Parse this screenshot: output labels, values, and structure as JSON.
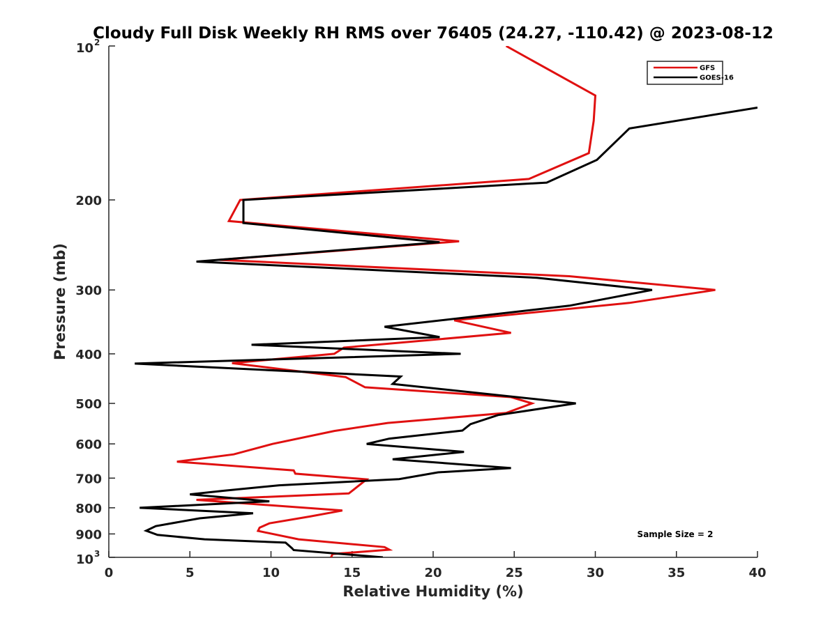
{
  "chart_data": {
    "type": "line",
    "title": "Cloudy Full Disk Weekly RH RMS over 76405 (24.27, -110.42) @ 2023-08-12",
    "xlabel": "Relative Humidity (%)",
    "ylabel": "Pressure (mb)",
    "xlim": [
      0,
      40
    ],
    "ylim": [
      100,
      1000
    ],
    "yscale": "log",
    "y_reversed": true,
    "x_ticks": [
      0,
      5,
      10,
      15,
      20,
      25,
      30,
      35,
      40
    ],
    "y_ticks": [
      {
        "value": 100,
        "base": "10",
        "exp": "2"
      },
      {
        "value": 200,
        "label": "200"
      },
      {
        "value": 300,
        "label": "300"
      },
      {
        "value": 400,
        "label": "400"
      },
      {
        "value": 500,
        "label": "500"
      },
      {
        "value": 600,
        "label": "600"
      },
      {
        "value": 700,
        "label": "700"
      },
      {
        "value": 800,
        "label": "800"
      },
      {
        "value": 900,
        "label": "900"
      },
      {
        "value": 1000,
        "base": "10",
        "exp": "3"
      }
    ],
    "legend_position": "top-right",
    "annotation": "Sample Size = 2",
    "series": [
      {
        "name": "GFS",
        "color": "#e01010",
        "points": [
          [
            24.5,
            100
          ],
          [
            30.0,
            125
          ],
          [
            29.9,
            140
          ],
          [
            29.6,
            162
          ],
          [
            25.9,
            182
          ],
          [
            8.1,
            200
          ],
          [
            7.4,
            220
          ],
          [
            21.6,
            241
          ],
          [
            6.8,
            262
          ],
          [
            28.4,
            282
          ],
          [
            37.4,
            300
          ],
          [
            32.1,
            318
          ],
          [
            21.3,
            344
          ],
          [
            24.8,
            364
          ],
          [
            14.5,
            389
          ],
          [
            13.9,
            400
          ],
          [
            7.6,
            417
          ],
          [
            14.6,
            444
          ],
          [
            15.8,
            465
          ],
          [
            24.8,
            486
          ],
          [
            26.1,
            500
          ],
          [
            24.5,
            522
          ],
          [
            17.2,
            546
          ],
          [
            13.9,
            566
          ],
          [
            10.1,
            600
          ],
          [
            7.7,
            629
          ],
          [
            4.2,
            650
          ],
          [
            11.4,
            676
          ],
          [
            11.5,
            686
          ],
          [
            15.9,
            704
          ],
          [
            14.8,
            750
          ],
          [
            5.4,
            772
          ],
          [
            14.4,
            810
          ],
          [
            12.4,
            832
          ],
          [
            9.9,
            858
          ],
          [
            9.3,
            875
          ],
          [
            9.2,
            888
          ],
          [
            11.7,
            922
          ],
          [
            17.0,
            955
          ],
          [
            17.3,
            966
          ],
          [
            13.8,
            985
          ],
          [
            13.7,
            1000
          ]
        ]
      },
      {
        "name": "GOES-16",
        "color": "#000000",
        "points": [
          [
            40.0,
            132
          ],
          [
            32.1,
            145
          ],
          [
            30.1,
            167
          ],
          [
            27.0,
            185
          ],
          [
            8.3,
            200
          ],
          [
            8.3,
            222
          ],
          [
            20.4,
            242
          ],
          [
            5.4,
            264
          ],
          [
            26.4,
            284
          ],
          [
            33.5,
            300
          ],
          [
            28.4,
            322
          ],
          [
            17.0,
            354
          ],
          [
            20.4,
            371
          ],
          [
            8.8,
            384
          ],
          [
            21.7,
            400
          ],
          [
            1.6,
            418
          ],
          [
            18.0,
            443
          ],
          [
            17.5,
            458
          ],
          [
            28.8,
            500
          ],
          [
            24.0,
            527
          ],
          [
            22.3,
            549
          ],
          [
            21.8,
            565
          ],
          [
            17.3,
            586
          ],
          [
            15.9,
            600
          ],
          [
            21.9,
            622
          ],
          [
            17.5,
            643
          ],
          [
            24.8,
            669
          ],
          [
            20.3,
            682
          ],
          [
            17.9,
            703
          ],
          [
            10.5,
            723
          ],
          [
            7.1,
            741
          ],
          [
            5.0,
            753
          ],
          [
            9.9,
            777
          ],
          [
            1.9,
            800
          ],
          [
            8.9,
            820
          ],
          [
            5.6,
            839
          ],
          [
            2.9,
            869
          ],
          [
            2.3,
            887
          ],
          [
            3.0,
            904
          ],
          [
            5.9,
            922
          ],
          [
            10.9,
            936
          ],
          [
            11.3,
            960
          ],
          [
            11.4,
            968
          ],
          [
            16.9,
            1000
          ]
        ]
      }
    ]
  }
}
